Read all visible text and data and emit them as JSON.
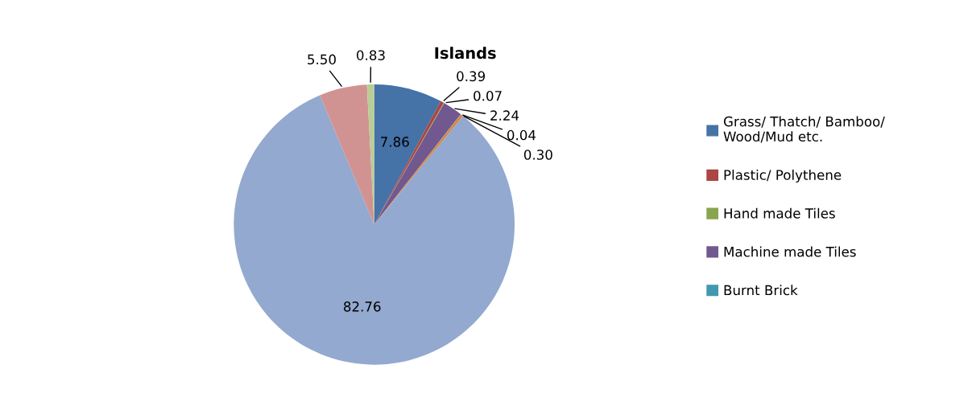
{
  "chart_data": {
    "type": "pie",
    "title": "Islands",
    "categories": [
      "Grass/ Thatch/ Bamboo/\nWood/Mud etc.",
      "Plastic/ Polythene",
      "Hand made Tiles",
      "Machine made Tiles",
      "Burnt Brick",
      null,
      null,
      null,
      null
    ],
    "values": [
      7.86,
      0.39,
      0.07,
      2.24,
      0.04,
      0.3,
      82.76,
      5.5,
      0.83
    ],
    "colors": [
      "#4572a7",
      "#aa4643",
      "#89a54e",
      "#71588f",
      "#4198af",
      "#db843d",
      "#93a9cf",
      "#d19392",
      "#b9cd96"
    ],
    "value_labels": [
      "7.86",
      "0.39",
      "0.07",
      "2.24",
      "0.04",
      "0.30",
      "82.76",
      "5.50",
      "0.83"
    ],
    "legend": "right"
  }
}
